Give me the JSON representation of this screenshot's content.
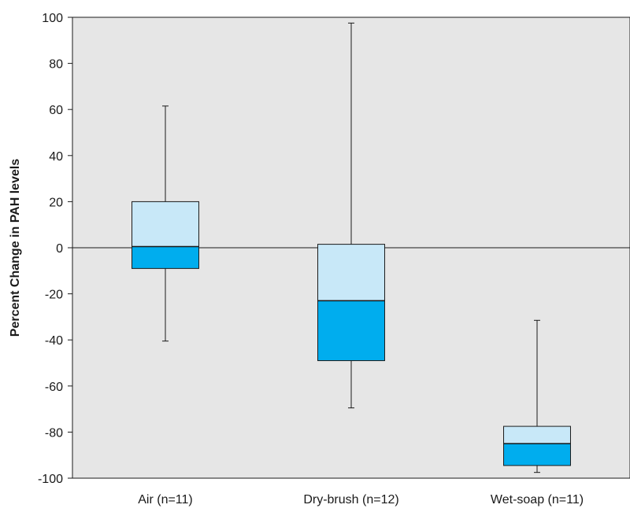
{
  "chart_data": {
    "type": "boxplot",
    "title": "",
    "xlabel": "",
    "ylabel": "Percent Change in PAH levels",
    "ylim": [
      -100,
      100
    ],
    "yticks": [
      100,
      80,
      60,
      40,
      20,
      0,
      -20,
      -40,
      -60,
      -80,
      -100
    ],
    "grid": false,
    "reference_line": 0,
    "categories": [
      "Air (n=11)",
      "Dry-brush (n=12)",
      "Wet-soap (n=11)"
    ],
    "boxes": [
      {
        "category": "Air (n=11)",
        "min": -40.5,
        "q1": -9,
        "median": 0.5,
        "q3": 20,
        "max": 61.5
      },
      {
        "category": "Dry-brush (n=12)",
        "min": -69.5,
        "q1": -49,
        "median": -23,
        "q3": 1.5,
        "max": 97.5
      },
      {
        "category": "Wet-soap (n=11)",
        "min": -97.5,
        "q1": -94.5,
        "median": -85,
        "q3": -77.5,
        "max": -31.5
      }
    ],
    "colors": {
      "plot_background": "#e6e6e6",
      "upper_box": "#c8e8f8",
      "lower_box": "#00adee",
      "stroke": "#1a1a1a"
    }
  }
}
